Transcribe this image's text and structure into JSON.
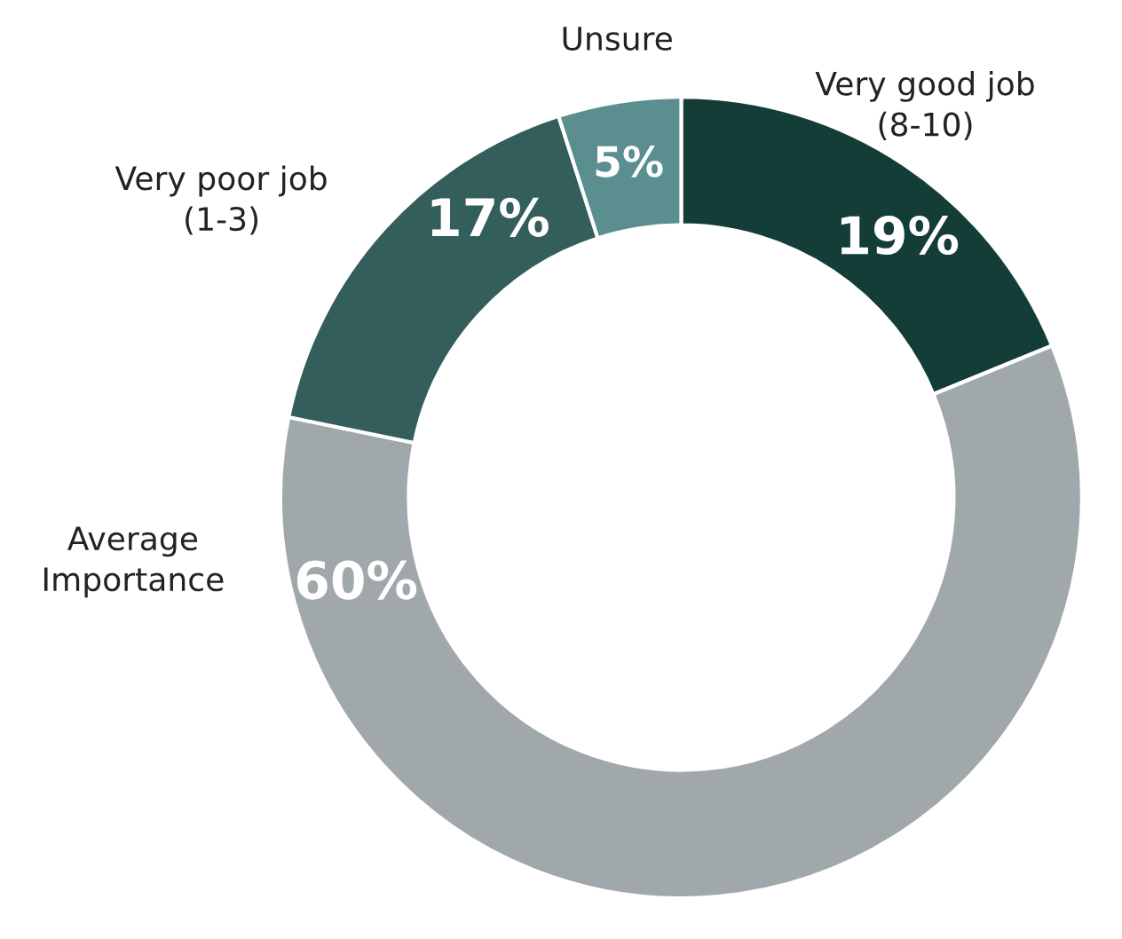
{
  "chart_data": {
    "type": "donut",
    "categories": [
      "Very good job\n(8-10)",
      "Average\nImportance",
      "Very poor job\n(1-3)",
      "Unsure"
    ],
    "values": [
      19,
      60,
      17,
      5
    ],
    "colors": [
      "#133d36",
      "#a1a8ab",
      "#335e5c",
      "#5a8e8f"
    ],
    "value_labels": [
      "19%",
      "60%",
      "17%",
      "5%"
    ],
    "legend": false
  }
}
